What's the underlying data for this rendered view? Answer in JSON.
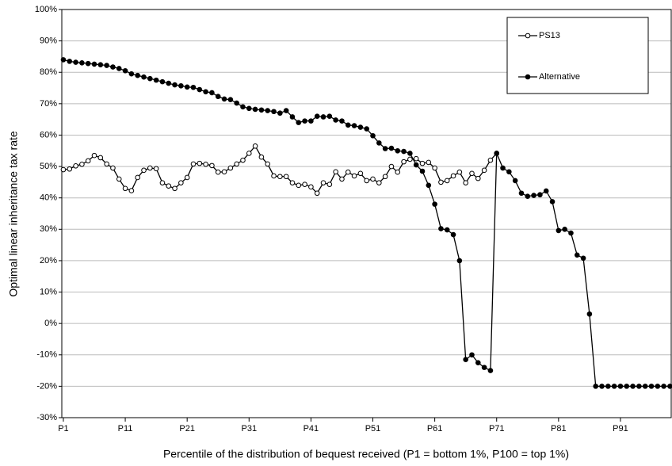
{
  "chart_data": {
    "type": "line",
    "x_label": "Percentile of the distribution of bequest received (P1 = bottom 1%, P100 = top 1%)",
    "y_label": "Optimal linear inheritance tax rate",
    "x": [
      1,
      2,
      3,
      4,
      5,
      6,
      7,
      8,
      9,
      10,
      11,
      12,
      13,
      14,
      15,
      16,
      17,
      18,
      19,
      20,
      21,
      22,
      23,
      24,
      25,
      26,
      27,
      28,
      29,
      30,
      31,
      32,
      33,
      34,
      35,
      36,
      37,
      38,
      39,
      40,
      41,
      42,
      43,
      44,
      45,
      46,
      47,
      48,
      49,
      50,
      51,
      52,
      53,
      54,
      55,
      56,
      57,
      58,
      59,
      60,
      61,
      62,
      63,
      64,
      65,
      66,
      67,
      68,
      69,
      70,
      71,
      72,
      73,
      74,
      75,
      76,
      77,
      78,
      79,
      80,
      81,
      82,
      83,
      84,
      85,
      86,
      87,
      88,
      89,
      90,
      91,
      92,
      93,
      94,
      95,
      96,
      97,
      98,
      99
    ],
    "series": [
      {
        "name": "PS13",
        "color": "#000000",
        "marker": "open",
        "values": [
          49,
          49.2,
          50.2,
          50.7,
          51.8,
          53.5,
          52.8,
          50.8,
          49.5,
          46,
          43,
          42.3,
          46.5,
          48.8,
          49.5,
          49.3,
          44.8,
          43.8,
          43,
          44.8,
          46.5,
          50.8,
          51,
          50.7,
          50.3,
          48.2,
          48.3,
          49.5,
          50.8,
          52,
          54.2,
          56.5,
          53,
          50.8,
          47,
          46.8,
          46.8,
          44.8,
          44,
          44.3,
          43.5,
          41.5,
          44.8,
          44.3,
          48.3,
          46,
          48.2,
          47,
          47.8,
          45.5,
          46,
          44.8,
          46.8,
          50,
          48.2,
          51.5,
          52.3,
          52.5,
          51,
          51.3,
          49.5,
          45,
          45.5,
          47,
          48.2,
          44.8,
          47.8,
          46.2,
          48.8,
          52,
          54.2,
          null,
          null,
          null,
          null,
          null,
          null,
          null,
          null,
          null,
          null,
          null,
          null,
          null,
          null,
          null,
          null,
          null,
          null,
          null,
          null,
          null,
          null,
          null,
          null,
          null,
          null,
          null,
          null
        ]
      },
      {
        "name": "Alternative",
        "color": "#000000",
        "marker": "filled",
        "values": [
          84,
          83.5,
          83.2,
          83,
          82.8,
          82.6,
          82.4,
          82.2,
          81.7,
          81.2,
          80.5,
          79.5,
          79,
          78.5,
          78,
          77.5,
          77,
          76.5,
          76,
          75.7,
          75.3,
          75.2,
          74.5,
          73.8,
          73.5,
          72.3,
          71.5,
          71.3,
          70.2,
          69,
          68.5,
          68.2,
          68,
          67.8,
          67.5,
          67,
          67.8,
          65.8,
          64,
          64.5,
          64.5,
          66,
          65.8,
          66,
          64.8,
          64.5,
          63.2,
          63,
          62.5,
          62,
          59.8,
          57.5,
          55.7,
          55.8,
          55,
          54.8,
          54.2,
          50.5,
          48.5,
          44,
          38,
          30.2,
          29.8,
          28.3,
          20,
          -11.5,
          -10,
          -12.5,
          -14,
          -15,
          54.2,
          49.5,
          48.3,
          45.5,
          41.5,
          40.5,
          40.8,
          41,
          42.2,
          38.8,
          29.6,
          30,
          28.8,
          21.8,
          20.8,
          3,
          -20,
          -20,
          -20,
          -20,
          -20,
          -20,
          -20,
          -20,
          -20,
          -20,
          -20,
          -20,
          -20
        ]
      }
    ],
    "xlim": [
      0.75,
      99.2
    ],
    "xticks": [
      {
        "value": 1,
        "label": "P1"
      },
      {
        "value": 11,
        "label": "P11"
      },
      {
        "value": 21,
        "label": "P21"
      },
      {
        "value": 31,
        "label": "P31"
      },
      {
        "value": 41,
        "label": "P41"
      },
      {
        "value": 51,
        "label": "P51"
      },
      {
        "value": 61,
        "label": "P61"
      },
      {
        "value": 71,
        "label": "P71"
      },
      {
        "value": 81,
        "label": "P81"
      },
      {
        "value": 91,
        "label": "P91"
      }
    ],
    "ylim": [
      -30,
      100
    ],
    "yticks": [
      {
        "value": -30,
        "label": "-30%"
      },
      {
        "value": -20,
        "label": "-20%"
      },
      {
        "value": -10,
        "label": "-10%"
      },
      {
        "value": 0,
        "label": "0%"
      },
      {
        "value": 10,
        "label": "10%"
      },
      {
        "value": 20,
        "label": "20%"
      },
      {
        "value": 30,
        "label": "30%"
      },
      {
        "value": 40,
        "label": "40%"
      },
      {
        "value": 50,
        "label": "50%"
      },
      {
        "value": 60,
        "label": "60%"
      },
      {
        "value": 70,
        "label": "70%"
      },
      {
        "value": 80,
        "label": "80%"
      },
      {
        "value": 90,
        "label": "90%"
      },
      {
        "value": 100,
        "label": "100%"
      }
    ],
    "grid": true,
    "legend": "top-right"
  }
}
